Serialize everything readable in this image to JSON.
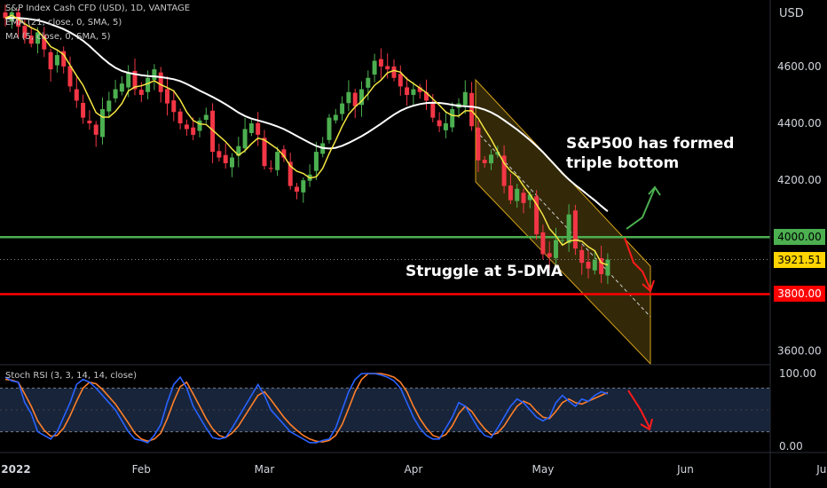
{
  "chart_data": {
    "type": "candlestick",
    "instrument": "S&P Index Cash CFD (USD), 1D, VANTAGE",
    "currency_label": "USD",
    "indicators": [
      {
        "name": "EMA (21, close, 0, SMA, 5)",
        "color": "#f5e642"
      },
      {
        "name": "MA (5, close, 0, SMA, 5)",
        "color": "#ffffff"
      }
    ],
    "y_ticks": [
      "4600.00",
      "4400.00",
      "4200.00",
      "3600.00"
    ],
    "ylim": [
      3555,
      4790
    ],
    "x_ticks": [
      {
        "label": "2022",
        "day": 0
      },
      {
        "label": "Feb",
        "day": 21
      },
      {
        "label": "Mar",
        "day": 40
      },
      {
        "label": "Apr",
        "day": 63
      },
      {
        "label": "May",
        "day": 83
      },
      {
        "label": "Jun",
        "day": 105
      },
      {
        "label": "Ju",
        "day": 126
      }
    ],
    "horizontal_levels": [
      {
        "label": "4000.00",
        "value": 4000,
        "color": "#4caf50"
      },
      {
        "label": "3800.00",
        "value": 3800,
        "color": "#ff0000"
      }
    ],
    "last_price": {
      "label": "3921.51",
      "value": 3921.51
    },
    "closes": [
      4770,
      4790,
      4740,
      4700,
      4680,
      4720,
      4660,
      4590,
      4640,
      4600,
      4530,
      4480,
      4420,
      4400,
      4360,
      4450,
      4480,
      4520,
      4540,
      4580,
      4520,
      4500,
      4560,
      4590,
      4510,
      4470,
      4440,
      4400,
      4380,
      4360,
      4410,
      4430,
      4300,
      4280,
      4260,
      4280,
      4320,
      4380,
      4400,
      4360,
      4250,
      4240,
      4300,
      4280,
      4180,
      4160,
      4200,
      4220,
      4300,
      4330,
      4420,
      4430,
      4470,
      4510,
      4460,
      4520,
      4560,
      4620,
      4600,
      4590,
      4560,
      4530,
      4500,
      4520,
      4510,
      4480,
      4420,
      4390,
      4400,
      4450,
      4470,
      4510,
      4390,
      4270,
      4260,
      4290,
      4300,
      4180,
      4130,
      4170,
      4120,
      4150,
      4010,
      3940,
      3930,
      3990,
      3990,
      4080,
      3960,
      3910,
      3890,
      3920,
      3870,
      3921.51
    ],
    "stoch_rsi": {
      "name": "Stoch RSI (3, 3, 14, 14, close)",
      "y_ticks": [
        "100.00",
        "0.00"
      ],
      "bands": [
        80,
        20
      ],
      "k": [
        95,
        90,
        88,
        60,
        45,
        20,
        15,
        10,
        20,
        40,
        60,
        85,
        92,
        88,
        80,
        70,
        60,
        50,
        35,
        20,
        10,
        8,
        5,
        15,
        30,
        60,
        85,
        95,
        80,
        55,
        40,
        25,
        12,
        10,
        12,
        25,
        40,
        55,
        70,
        85,
        70,
        50,
        40,
        30,
        20,
        15,
        10,
        5,
        5,
        8,
        10,
        25,
        50,
        75,
        92,
        100,
        100,
        100,
        98,
        95,
        90,
        80,
        60,
        40,
        25,
        15,
        10,
        10,
        25,
        40,
        60,
        55,
        40,
        25,
        15,
        12,
        25,
        40,
        55,
        65,
        60,
        50,
        40,
        35,
        40,
        60,
        70,
        62,
        55,
        65,
        62,
        70,
        75,
        72
      ],
      "d": [
        92,
        91,
        88,
        72,
        55,
        35,
        22,
        14,
        15,
        25,
        42,
        62,
        80,
        88,
        86,
        78,
        68,
        58,
        45,
        32,
        18,
        10,
        7,
        10,
        18,
        38,
        62,
        82,
        88,
        72,
        55,
        38,
        24,
        15,
        12,
        18,
        28,
        42,
        56,
        70,
        75,
        64,
        52,
        40,
        30,
        22,
        15,
        10,
        7,
        6,
        8,
        15,
        30,
        52,
        75,
        92,
        100,
        100,
        100,
        98,
        95,
        88,
        75,
        55,
        38,
        25,
        15,
        12,
        16,
        28,
        45,
        55,
        48,
        35,
        24,
        16,
        18,
        28,
        42,
        55,
        62,
        58,
        48,
        40,
        38,
        48,
        60,
        65,
        60,
        58,
        62,
        66,
        70,
        74
      ]
    }
  },
  "annotations": {
    "triple_bottom_line1": "S&P500 has formed",
    "triple_bottom_line2": "triple bottom",
    "struggle": "Struggle at 5-DMA"
  },
  "colors": {
    "up": "#4caf50",
    "down": "#f23645",
    "channel_fill": "#5c4a10",
    "channel_edge": "#d4a017",
    "stoch_k": "#2962ff",
    "stoch_d": "#ff7f2a"
  }
}
